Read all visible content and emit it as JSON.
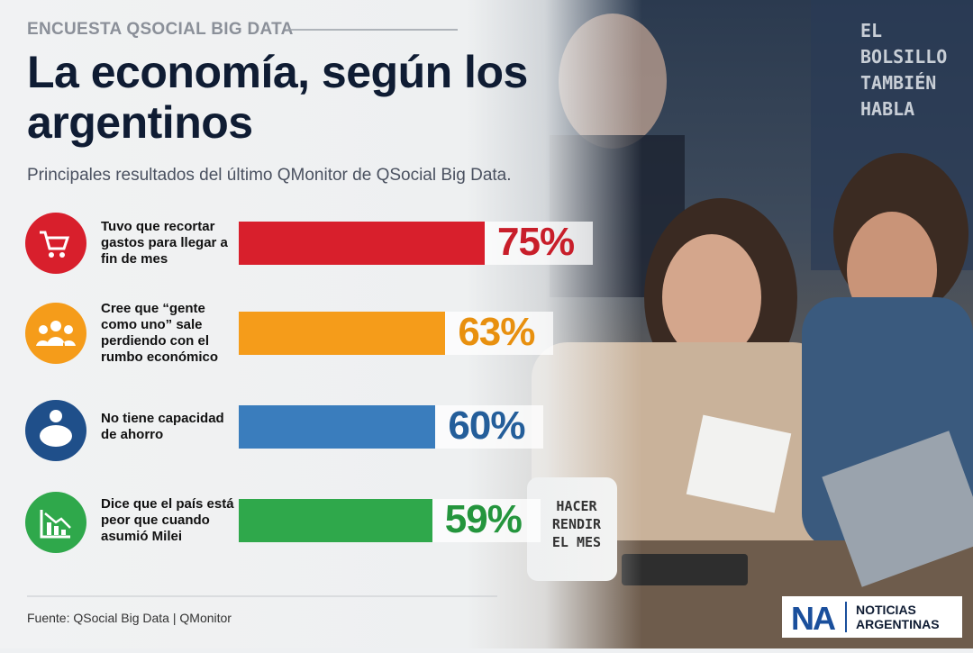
{
  "chart_data": {
    "type": "bar",
    "kicker": "ENCUESTA QSOCIAL BIG DATA",
    "title": "La economía, según los argentinos",
    "subtitle": "Principales resultados del último QMonitor de QSocial Big Data.",
    "categories": [
      "Tuvo que recortar gastos para llegar a fin de mes",
      "Cree que “gente como uno” sale perdiendo con el rumbo económico",
      "No tiene capacidad de ahorro",
      "Dice que el país está peor que cuando asumió Milei"
    ],
    "values": [
      75,
      63,
      60,
      59
    ],
    "value_labels": [
      "75%",
      "63%",
      "60%",
      "59%"
    ],
    "colors": [
      "#d81f2c",
      "#f59c1a",
      "#3a7dbd",
      "#2fa84b"
    ],
    "label_colors": [
      "#c81e2a",
      "#e8900f",
      "#245e9a",
      "#24953d"
    ],
    "source": "Fuente: QSocial Big Data | QMonitor",
    "side_text": "EL BOLSILLO TAMBIÉN HABLA",
    "mug_text": "HACER RENDIR EL MES",
    "logo": {
      "mark": "NA",
      "name": "NOTICIAS ARGENTINAS"
    }
  }
}
